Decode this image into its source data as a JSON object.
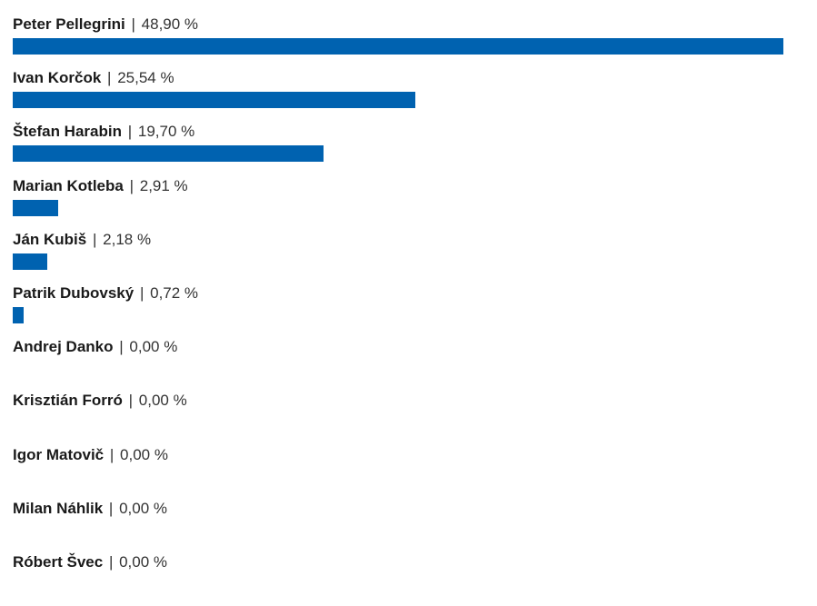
{
  "chart_data": {
    "type": "bar",
    "orientation": "horizontal",
    "xlim": [
      0,
      48.9
    ],
    "bar_color": "#0062B0",
    "separator": "|",
    "categories": [
      "Peter Pellegrini",
      "Ivan Korčok",
      "Štefan Harabin",
      "Marian Kotleba",
      "Ján Kubiš",
      "Patrik Dubovský",
      "Andrej Danko",
      "Krisztián Forró",
      "Igor Matovič",
      "Milan Náhlik",
      "Róbert Švec"
    ],
    "values": [
      48.9,
      25.54,
      19.7,
      2.91,
      2.18,
      0.72,
      0.0,
      0.0,
      0.0,
      0.0,
      0.0
    ],
    "value_labels": [
      "48,90 %",
      "25,54 %",
      "19,70 %",
      "2,91 %",
      "2,18 %",
      "0,72 %",
      "0,00 %",
      "0,00 %",
      "0,00 %",
      "0,00 %",
      "0,00 %"
    ]
  }
}
